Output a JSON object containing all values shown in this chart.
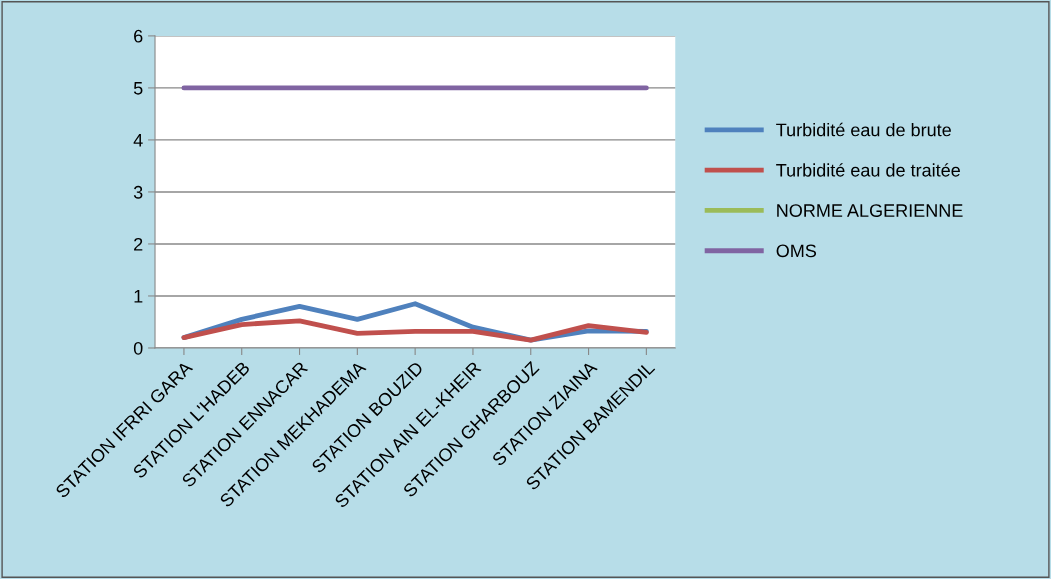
{
  "chart_data": {
    "type": "line",
    "categories": [
      "STATION IFRRI GARA",
      "STATION L'HADEB",
      "STATION ENNACAR",
      "STATION MEKHADEMA",
      "STATION BOUZID",
      "STATION AIN EL-KHEIR",
      "STATION GHARBOUZ",
      "STATION ZIAINA",
      "STATION BAMENDIL"
    ],
    "series": [
      {
        "name": "Turbidité eau de brute",
        "color": "#4f81bd",
        "values": [
          0.2,
          0.55,
          0.8,
          0.55,
          0.85,
          0.4,
          0.15,
          0.33,
          0.32
        ]
      },
      {
        "name": "Turbidité eau de traitée",
        "color": "#c0504d",
        "values": [
          0.2,
          0.45,
          0.52,
          0.28,
          0.32,
          0.32,
          0.15,
          0.43,
          0.3
        ]
      },
      {
        "name": "NORME ALGERIENNE",
        "color": "#9bbb59",
        "values": [
          null,
          null,
          null,
          null,
          null,
          null,
          null,
          null,
          null
        ]
      },
      {
        "name": "OMS",
        "color": "#8064a2",
        "values": [
          5,
          5,
          5,
          5,
          5,
          5,
          5,
          5,
          5
        ]
      }
    ],
    "ylim": [
      0,
      6
    ],
    "yticks": [
      0,
      1,
      2,
      3,
      4,
      5,
      6
    ],
    "grid": "y",
    "legend": "right",
    "marker": "none",
    "line_style": "solid"
  }
}
